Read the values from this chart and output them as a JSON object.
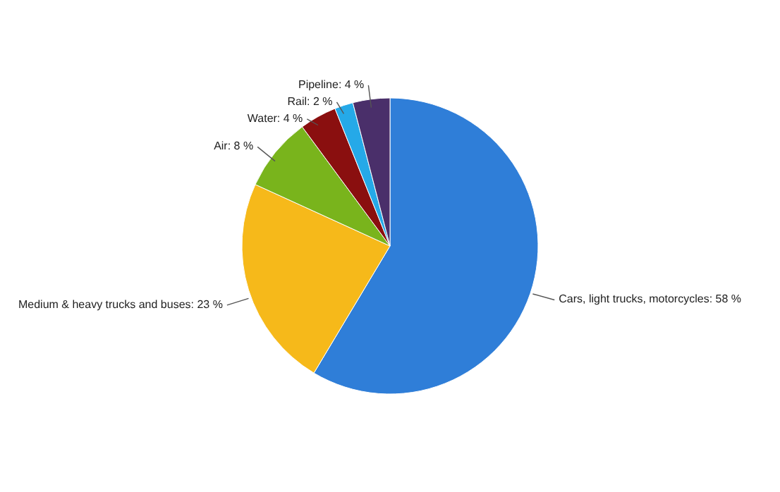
{
  "chart_data": {
    "type": "pie",
    "categories": [
      "Cars, light trucks, motorcycles",
      "Medium & heavy trucks and buses",
      "Air",
      "Water",
      "Rail",
      "Pipeline"
    ],
    "values": [
      58,
      23,
      8,
      4,
      2,
      4
    ],
    "value_labels": [
      "58 %",
      "23 %",
      "8 %",
      "4 %",
      "2 %",
      "4 %"
    ],
    "colors": [
      "#2f7ed8",
      "#f6b91a",
      "#79b41c",
      "#8a0f0f",
      "#25a9e8",
      "#4a2f6a"
    ]
  }
}
